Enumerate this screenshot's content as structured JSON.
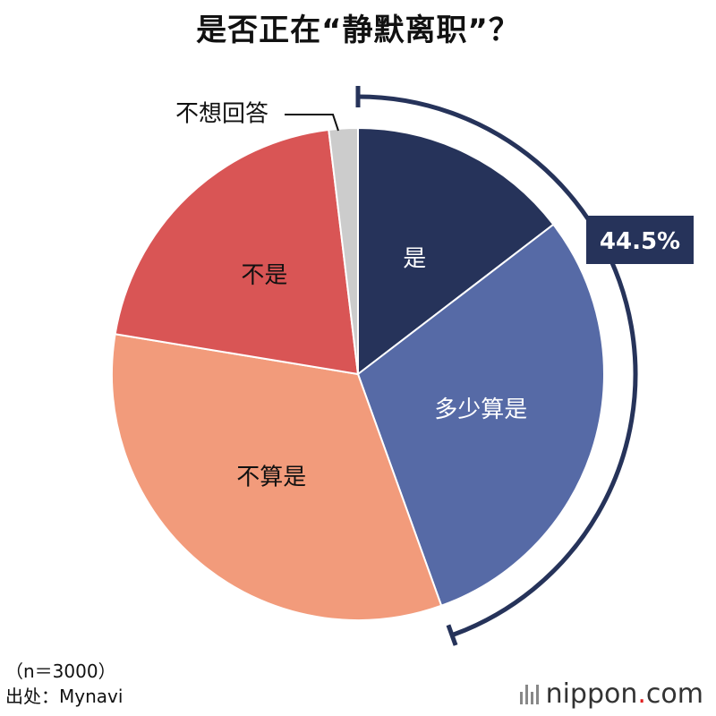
{
  "chart_data": {
    "type": "pie",
    "title": "是否正在“静默离职”？",
    "categories": [
      "是",
      "多少算是",
      "不算是",
      "不是",
      "不想回答"
    ],
    "values": [
      14.6,
      29.9,
      33.1,
      20.5,
      1.9
    ],
    "colors": [
      "#26335a",
      "#566aa6",
      "#f29b7b",
      "#d95555",
      "#cccccc"
    ],
    "label_colors": [
      "#ffffff",
      "#ffffff",
      "#111111",
      "#111111",
      "#111111"
    ],
    "bracket_label": "44.5%",
    "bracket_color": "#26335a"
  },
  "note": {
    "sample": "（n＝3000）",
    "source": "出处：Mynavi"
  },
  "brand": {
    "name_a": "nippon",
    "dot": ".",
    "name_b": "com"
  }
}
